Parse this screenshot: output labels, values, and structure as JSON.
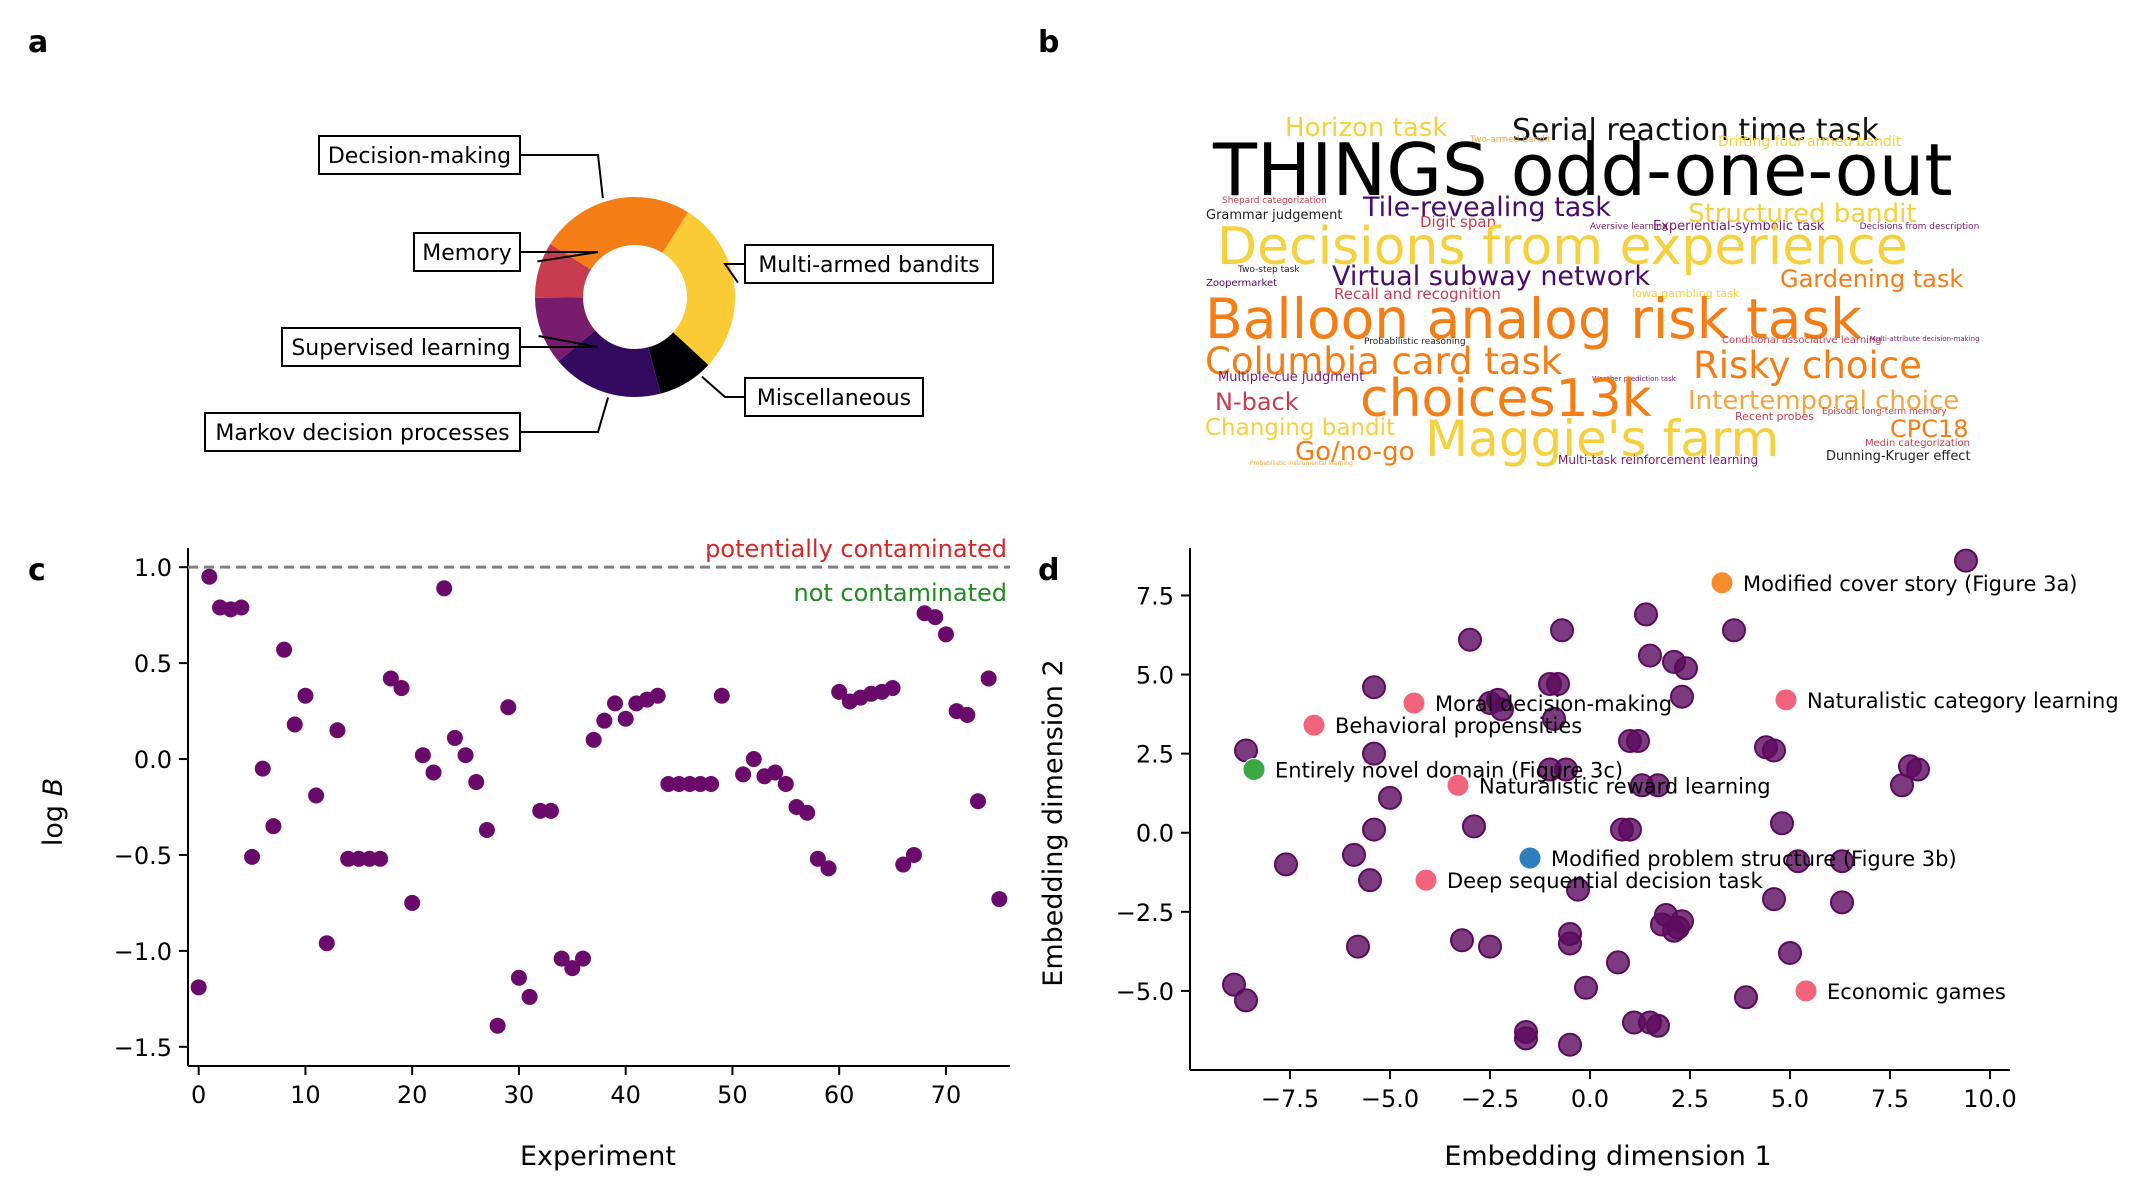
{
  "panel_letters": {
    "a": "a",
    "b": "b",
    "c": "c",
    "d": "d"
  },
  "panel_a": {
    "chart_data": {
      "type": "pie",
      "categories": [
        "Multi-armed bandits",
        "Miscellaneous",
        "Markov decision processes",
        "Supervised learning",
        "Memory",
        "Decision-making"
      ],
      "values": [
        28,
        9,
        18,
        11,
        9,
        25
      ],
      "colors": [
        "#fbcb36",
        "#000004",
        "#330a5f",
        "#781c6d",
        "#c73d4f",
        "#f57d15"
      ],
      "hole": 0.52
    }
  },
  "panel_b": {
    "words": [
      {
        "text": "Horizon task",
        "color": "#f7d13d"
      },
      {
        "text": "Serial reaction time task",
        "color": "#111111"
      },
      {
        "text": "Two-armed bandit",
        "color": "#f4a640"
      },
      {
        "text": "Drifting four-armed bandit",
        "color": "#f7d13d"
      },
      {
        "text": "THINGS odd-one-out",
        "color": "#000000"
      },
      {
        "text": "Shepard categorization",
        "color": "#c73d4f"
      },
      {
        "text": "Grammar judgement",
        "color": "#222222"
      },
      {
        "text": "Tile-revealing task",
        "color": "#4a0c6b"
      },
      {
        "text": "Digit span",
        "color": "#c73d4f"
      },
      {
        "text": "Aversive learning",
        "color": "#781c6d"
      },
      {
        "text": "Experiential-symbolic task",
        "color": "#781c6d"
      },
      {
        "text": "Structured bandit",
        "color": "#f7d13d"
      },
      {
        "text": "Decisions from description",
        "color": "#781c6d"
      },
      {
        "text": "Decisions from experience",
        "color": "#f7d13d"
      },
      {
        "text": "Two-step task",
        "color": "#222222"
      },
      {
        "text": "Zoopermarket",
        "color": "#4a0c6b"
      },
      {
        "text": "Virtual subway network",
        "color": "#4a0c6b"
      },
      {
        "text": "Gardening task",
        "color": "#f57d15"
      },
      {
        "text": "Recall and recognition",
        "color": "#c73d4f"
      },
      {
        "text": "Iowa gambling task",
        "color": "#f7d13d"
      },
      {
        "text": "Balloon analog risk task",
        "color": "#f57d15"
      },
      {
        "text": "Probabilistic reasoning",
        "color": "#222222"
      },
      {
        "text": "Conditional associative learning",
        "color": "#c73d4f"
      },
      {
        "text": "Multi-attribute decision-making",
        "color": "#781c6d"
      },
      {
        "text": "Columbia card task",
        "color": "#f57d15"
      },
      {
        "text": "Multiple-cue judgment",
        "color": "#781c6d"
      },
      {
        "text": "Weather prediction task",
        "color": "#781c6d"
      },
      {
        "text": "Risky choice",
        "color": "#f57d15"
      },
      {
        "text": "N-back",
        "color": "#c73d4f"
      },
      {
        "text": "choices13k",
        "color": "#f57d15"
      },
      {
        "text": "Intertemporal choice",
        "color": "#f4a640"
      },
      {
        "text": "Recent probes",
        "color": "#c73d4f"
      },
      {
        "text": "Episodic long-term memory",
        "color": "#c73d4f"
      },
      {
        "text": "Changing bandit",
        "color": "#f7d13d"
      },
      {
        "text": "Maggie's farm",
        "color": "#f7d13d"
      },
      {
        "text": "CPC18",
        "color": "#f57d15"
      },
      {
        "text": "Medin categorization",
        "color": "#c73d4f"
      },
      {
        "text": "Go/no-go",
        "color": "#f57d15"
      },
      {
        "text": "Multi-task reinforcement learning",
        "color": "#781c6d"
      },
      {
        "text": "Dunning-Kruger effect",
        "color": "#222222"
      },
      {
        "text": "Probabilistic instrumental learning",
        "color": "#f4a640"
      }
    ]
  },
  "panel_c": {
    "chart_data": {
      "type": "scatter",
      "xlabel": "Experiment",
      "ylabel": "log B",
      "xlim": [
        -1,
        76
      ],
      "ylim": [
        -1.6,
        1.1
      ],
      "xticks": [
        0,
        10,
        20,
        30,
        40,
        50,
        60,
        70
      ],
      "yticks": [
        1.0,
        0.5,
        0.0,
        -0.5,
        -1.0,
        -1.5
      ],
      "xtick_labels": [
        "0",
        "10",
        "20",
        "30",
        "40",
        "50",
        "60",
        "70"
      ],
      "ytick_labels": [
        "1.0",
        "0.5",
        "0.0",
        "−0.5",
        "−1.0",
        "−1.5"
      ],
      "threshold": 1.0,
      "threshold_label_above": "potentially contaminated",
      "threshold_label_below": "not contaminated",
      "color": "#6a0a6b",
      "x": [
        0,
        1,
        2,
        3,
        4,
        5,
        6,
        7,
        8,
        9,
        10,
        11,
        12,
        13,
        14,
        15,
        16,
        17,
        18,
        19,
        20,
        21,
        22,
        23,
        24,
        25,
        26,
        27,
        28,
        29,
        30,
        31,
        32,
        33,
        34,
        35,
        36,
        37,
        38,
        39,
        40,
        41,
        42,
        43,
        44,
        45,
        46,
        47,
        48,
        49,
        51,
        52,
        53,
        54,
        55,
        56,
        57,
        58,
        59,
        60,
        61,
        62,
        63,
        64,
        65,
        66,
        67,
        68,
        69,
        70,
        71,
        72,
        73,
        74,
        75
      ],
      "y": [
        -1.19,
        0.95,
        0.79,
        0.78,
        0.79,
        -0.51,
        -0.05,
        -0.35,
        0.57,
        0.18,
        0.33,
        -0.19,
        -0.96,
        0.15,
        -0.52,
        -0.52,
        -0.52,
        -0.52,
        0.42,
        0.37,
        -0.75,
        0.02,
        -0.07,
        0.89,
        0.11,
        0.02,
        -0.12,
        -0.37,
        -1.39,
        0.27,
        -1.14,
        -1.24,
        -0.27,
        -0.27,
        -1.04,
        -1.09,
        -1.04,
        0.1,
        0.2,
        0.29,
        0.21,
        0.29,
        0.31,
        0.33,
        -0.13,
        -0.13,
        -0.13,
        -0.13,
        -0.13,
        0.33,
        -0.08,
        0.0,
        -0.09,
        -0.07,
        -0.13,
        -0.25,
        -0.28,
        -0.52,
        -0.57,
        0.35,
        0.3,
        0.32,
        0.34,
        0.35,
        0.37,
        -0.55,
        -0.5,
        0.76,
        0.74,
        0.65,
        0.25,
        0.23,
        -0.22,
        0.42,
        -0.73
      ]
    }
  },
  "panel_d": {
    "chart_data": {
      "type": "scatter",
      "xlabel": "Embedding dimension 1",
      "ylabel": "Embedding dimension 2",
      "xlim": [
        -10,
        10.5
      ],
      "ylim": [
        -7.5,
        9.0
      ],
      "xticks": [
        -7.5,
        -5.0,
        -2.5,
        0.0,
        2.5,
        5.0,
        7.5,
        10.0
      ],
      "yticks": [
        7.5,
        5.0,
        2.5,
        0.0,
        -2.5,
        -5.0
      ],
      "xtick_labels": [
        "−7.5",
        "−5.0",
        "−2.5",
        "0.0",
        "2.5",
        "5.0",
        "7.5",
        "10.0"
      ],
      "ytick_labels": [
        "7.5",
        "5.0",
        "2.5",
        "0.0",
        "−2.5",
        "−5.0"
      ],
      "base_color": "#5b0a5e",
      "points": [
        [
          9.4,
          8.6
        ],
        [
          3.6,
          6.4
        ],
        [
          -3.0,
          6.1
        ],
        [
          -0.7,
          6.4
        ],
        [
          1.4,
          6.9
        ],
        [
          1.5,
          5.6
        ],
        [
          2.1,
          5.4
        ],
        [
          2.4,
          5.2
        ],
        [
          -5.4,
          4.6
        ],
        [
          -2.5,
          4.1
        ],
        [
          -2.3,
          4.2
        ],
        [
          -2.2,
          3.9
        ],
        [
          -1.0,
          4.7
        ],
        [
          -0.8,
          4.7
        ],
        [
          -0.9,
          3.6
        ],
        [
          2.3,
          4.3
        ],
        [
          1.0,
          2.9
        ],
        [
          1.2,
          2.9
        ],
        [
          4.4,
          2.7
        ],
        [
          4.6,
          2.6
        ],
        [
          -8.6,
          2.6
        ],
        [
          -5.4,
          2.5
        ],
        [
          -1.0,
          2.0
        ],
        [
          -0.6,
          2.0
        ],
        [
          1.3,
          1.5
        ],
        [
          1.7,
          1.5
        ],
        [
          -5.0,
          1.1
        ],
        [
          7.8,
          1.5
        ],
        [
          8.0,
          2.1
        ],
        [
          8.2,
          2.0
        ],
        [
          -5.4,
          0.1
        ],
        [
          -2.9,
          0.2
        ],
        [
          0.8,
          0.1
        ],
        [
          1.0,
          0.1
        ],
        [
          4.8,
          0.3
        ],
        [
          -7.6,
          -1.0
        ],
        [
          -5.9,
          -0.7
        ],
        [
          -5.5,
          -1.5
        ],
        [
          5.2,
          -0.9
        ],
        [
          6.3,
          -0.9
        ],
        [
          -0.3,
          -1.8
        ],
        [
          4.6,
          -2.1
        ],
        [
          6.3,
          -2.2
        ],
        [
          1.9,
          -2.6
        ],
        [
          2.3,
          -2.8
        ],
        [
          1.8,
          -2.9
        ],
        [
          2.1,
          -3.1
        ],
        [
          2.2,
          -3.0
        ],
        [
          -3.2,
          -3.4
        ],
        [
          -2.5,
          -3.6
        ],
        [
          -0.5,
          -3.2
        ],
        [
          -0.5,
          -3.5
        ],
        [
          -5.8,
          -3.6
        ],
        [
          5.0,
          -3.8
        ],
        [
          0.7,
          -4.1
        ],
        [
          -8.9,
          -4.8
        ],
        [
          -8.6,
          -5.3
        ],
        [
          -0.1,
          -4.9
        ],
        [
          3.9,
          -5.2
        ],
        [
          1.1,
          -6.0
        ],
        [
          1.5,
          -6.0
        ],
        [
          1.7,
          -6.1
        ],
        [
          -1.6,
          -6.3
        ],
        [
          -1.6,
          -6.5
        ],
        [
          -0.5,
          -6.7
        ]
      ],
      "highlights": [
        {
          "x": 3.3,
          "y": 7.9,
          "color": "#f58c2e",
          "label": "Modified cover story (Figure 3a)"
        },
        {
          "x": -4.4,
          "y": 4.1,
          "color": "#f2647b",
          "label": "Moral decision-making"
        },
        {
          "x": -6.9,
          "y": 3.4,
          "color": "#f2647b",
          "label": "Behavioral propensities"
        },
        {
          "x": 4.9,
          "y": 4.2,
          "color": "#f2647b",
          "label": "Naturalistic category learning"
        },
        {
          "x": -8.4,
          "y": 2.0,
          "color": "#3aa845",
          "label": "Entirely novel domain (Figure 3c)"
        },
        {
          "x": -3.3,
          "y": 1.5,
          "color": "#f2647b",
          "label": "Naturalistic reward learning"
        },
        {
          "x": -1.5,
          "y": -0.8,
          "color": "#2f7fbf",
          "label": "Modified problem structure (Figure 3b)"
        },
        {
          "x": -4.1,
          "y": -1.5,
          "color": "#f2647b",
          "label": "Deep sequential decision task"
        },
        {
          "x": 5.4,
          "y": -5.0,
          "color": "#f2647b",
          "label": "Economic games"
        }
      ]
    }
  }
}
